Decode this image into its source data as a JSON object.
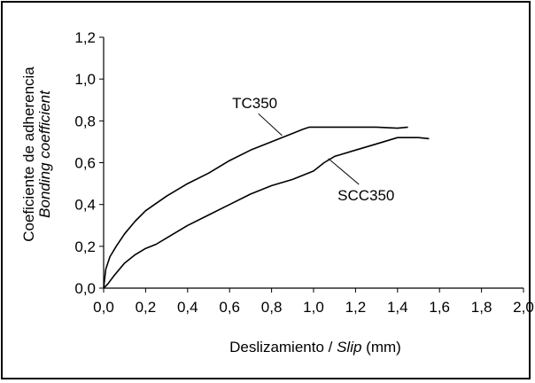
{
  "chart_data": {
    "type": "line",
    "title": "",
    "xlabel": {
      "text": "Deslizamiento / ",
      "italic": "Slip",
      "unit": " (mm)"
    },
    "ylabel": {
      "line1": "Coeficiente de adherencia",
      "line2": "Bonding coefficient"
    },
    "xlim": [
      0,
      2.0
    ],
    "ylim": [
      0,
      1.2
    ],
    "x_ticks": [
      "0,0",
      "0,2",
      "0,4",
      "0,6",
      "0,8",
      "1,0",
      "1,2",
      "1,4",
      "1,6",
      "1,8",
      "2,0"
    ],
    "y_ticks": [
      "0,0",
      "0,2",
      "0,4",
      "0,6",
      "0,8",
      "1,0",
      "1,2"
    ],
    "grid": false,
    "legend": "none",
    "series": [
      {
        "name": "TC350",
        "color": "#000000",
        "points": [
          [
            0.0,
            0.0
          ],
          [
            0.01,
            0.09
          ],
          [
            0.03,
            0.15
          ],
          [
            0.06,
            0.2
          ],
          [
            0.1,
            0.26
          ],
          [
            0.15,
            0.32
          ],
          [
            0.2,
            0.37
          ],
          [
            0.3,
            0.44
          ],
          [
            0.4,
            0.5
          ],
          [
            0.5,
            0.55
          ],
          [
            0.6,
            0.61
          ],
          [
            0.7,
            0.66
          ],
          [
            0.8,
            0.7
          ],
          [
            0.9,
            0.74
          ],
          [
            0.95,
            0.76
          ],
          [
            0.98,
            0.77
          ],
          [
            1.1,
            0.77
          ],
          [
            1.2,
            0.77
          ],
          [
            1.3,
            0.77
          ],
          [
            1.4,
            0.765
          ],
          [
            1.45,
            0.77
          ]
        ]
      },
      {
        "name": "SCC350",
        "color": "#000000",
        "points": [
          [
            0.0,
            0.0
          ],
          [
            0.02,
            0.02
          ],
          [
            0.05,
            0.06
          ],
          [
            0.1,
            0.12
          ],
          [
            0.15,
            0.16
          ],
          [
            0.2,
            0.19
          ],
          [
            0.25,
            0.21
          ],
          [
            0.3,
            0.24
          ],
          [
            0.4,
            0.3
          ],
          [
            0.5,
            0.35
          ],
          [
            0.6,
            0.4
          ],
          [
            0.7,
            0.45
          ],
          [
            0.8,
            0.49
          ],
          [
            0.9,
            0.52
          ],
          [
            1.0,
            0.56
          ],
          [
            1.05,
            0.6
          ],
          [
            1.1,
            0.63
          ],
          [
            1.2,
            0.66
          ],
          [
            1.3,
            0.69
          ],
          [
            1.4,
            0.72
          ],
          [
            1.5,
            0.72
          ],
          [
            1.55,
            0.715
          ]
        ]
      }
    ],
    "annotations": [
      {
        "text": "TC350",
        "x": 0.72,
        "y": 0.86,
        "target": [
          0.85,
          0.73
        ]
      },
      {
        "text": "SCC350",
        "x": 1.25,
        "y": 0.42,
        "target": [
          1.07,
          0.62
        ]
      }
    ]
  }
}
